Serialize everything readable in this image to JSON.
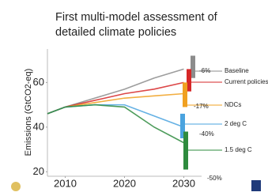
{
  "chart_data": {
    "type": "line",
    "title": [
      "First multi-model assessment of",
      "detailed climate policies"
    ],
    "y_label": "Emissions (GtCO2-eq)",
    "x": [
      2007,
      2010,
      2015,
      2020,
      2025,
      2030
    ],
    "xlim": [
      2007,
      2033
    ],
    "xticks": [
      2010,
      2020,
      2030
    ],
    "ylim": [
      18,
      75
    ],
    "yticks": [
      20,
      40,
      60
    ],
    "series": [
      {
        "name": "Baseline",
        "color": "#8c8c8c",
        "values": [
          46,
          49,
          53,
          57,
          62,
          66
        ],
        "range": [
          62,
          72
        ]
      },
      {
        "name": "Current policies",
        "color": "#d62728",
        "values": [
          46,
          49,
          52,
          55,
          57,
          60
        ],
        "range": [
          56,
          66
        ]
      },
      {
        "name": "NDCs",
        "color": "#f0a020",
        "values": [
          46,
          49,
          51,
          53,
          54,
          55
        ],
        "range": [
          49,
          60
        ]
      },
      {
        "name": "2 deg C",
        "color": "#4aa3df",
        "values": [
          46,
          49,
          50,
          50,
          45,
          40
        ],
        "range": [
          35,
          46
        ]
      },
      {
        "name": "1.5 deg C",
        "color": "#2e8b3e",
        "values": [
          46,
          49,
          50,
          49,
          40,
          33
        ],
        "range": [
          21,
          38
        ]
      }
    ],
    "annotations": [
      "-6%",
      "-17%",
      "-40%",
      "-50%"
    ]
  }
}
